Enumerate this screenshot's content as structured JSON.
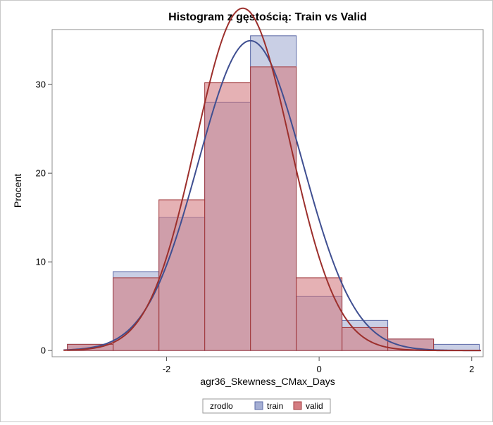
{
  "chart_data": {
    "type": "bar",
    "title": "Histogram z gęstością: Train vs Valid",
    "xlabel": "agr36_Skewness_CMax_Days",
    "ylabel": "Procent",
    "x_ticks": [
      -2,
      0,
      2
    ],
    "y_ticks": [
      0,
      10,
      20,
      30
    ],
    "xlim": [
      -3.5,
      2.15
    ],
    "ylim": [
      -0.7,
      36.2
    ],
    "bin_edges": [
      -3.3,
      -2.7,
      -2.1,
      -1.5,
      -0.9,
      -0.3,
      0.3,
      0.9,
      1.5,
      2.1
    ],
    "series": [
      {
        "name": "train",
        "fill": "#a5afd4",
        "stroke": "#5a68a6",
        "curve_color": "#3f4f91",
        "values": [
          0.7,
          8.9,
          15.0,
          28.0,
          35.5,
          6.1,
          3.4,
          1.3,
          0.7
        ],
        "density": {
          "mean": -0.9,
          "sd": 0.685
        }
      },
      {
        "name": "valid",
        "fill": "#d47d82",
        "stroke": "#a33c3f",
        "curve_color": "#9c2f2c",
        "values": [
          0.7,
          8.2,
          17.0,
          30.2,
          32.0,
          8.2,
          2.6,
          1.3,
          0.0
        ],
        "density": {
          "mean": -1.0,
          "sd": 0.62
        }
      }
    ],
    "legend": {
      "title": "zrodlo",
      "entries": [
        "train",
        "valid"
      ],
      "position": "bottom-center"
    }
  }
}
